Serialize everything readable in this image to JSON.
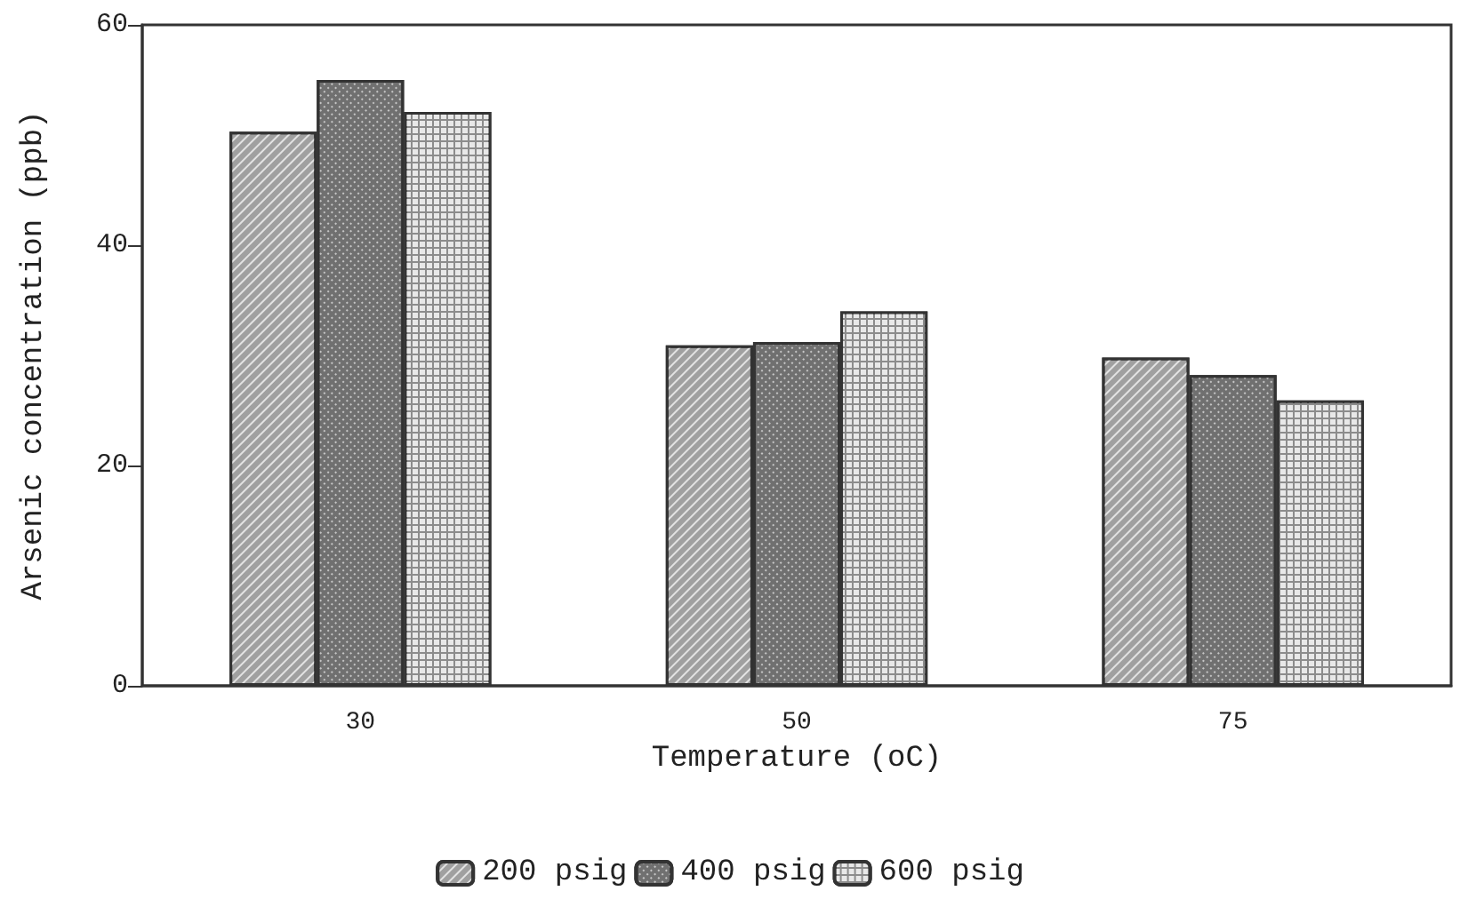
{
  "chart_data": {
    "type": "bar",
    "xlabel": "Temperature (oC)",
    "ylabel": "Arsenic concentration (ppb)",
    "categories": [
      "30",
      "50",
      "75"
    ],
    "series": [
      {
        "name": "200 psig",
        "color": "#a0a0a0",
        "values": [
          50.3,
          30.9,
          29.8
        ]
      },
      {
        "name": "400 psig",
        "color": "#707070",
        "values": [
          55.0,
          31.2,
          28.2
        ]
      },
      {
        "name": "600 psig",
        "color": "#8c8c8c",
        "values": [
          52.1,
          34.0,
          25.9
        ]
      }
    ],
    "ylim": [
      0,
      60
    ],
    "yticks": [
      0,
      20,
      40,
      60
    ],
    "grid": false,
    "legend": "bottom"
  }
}
